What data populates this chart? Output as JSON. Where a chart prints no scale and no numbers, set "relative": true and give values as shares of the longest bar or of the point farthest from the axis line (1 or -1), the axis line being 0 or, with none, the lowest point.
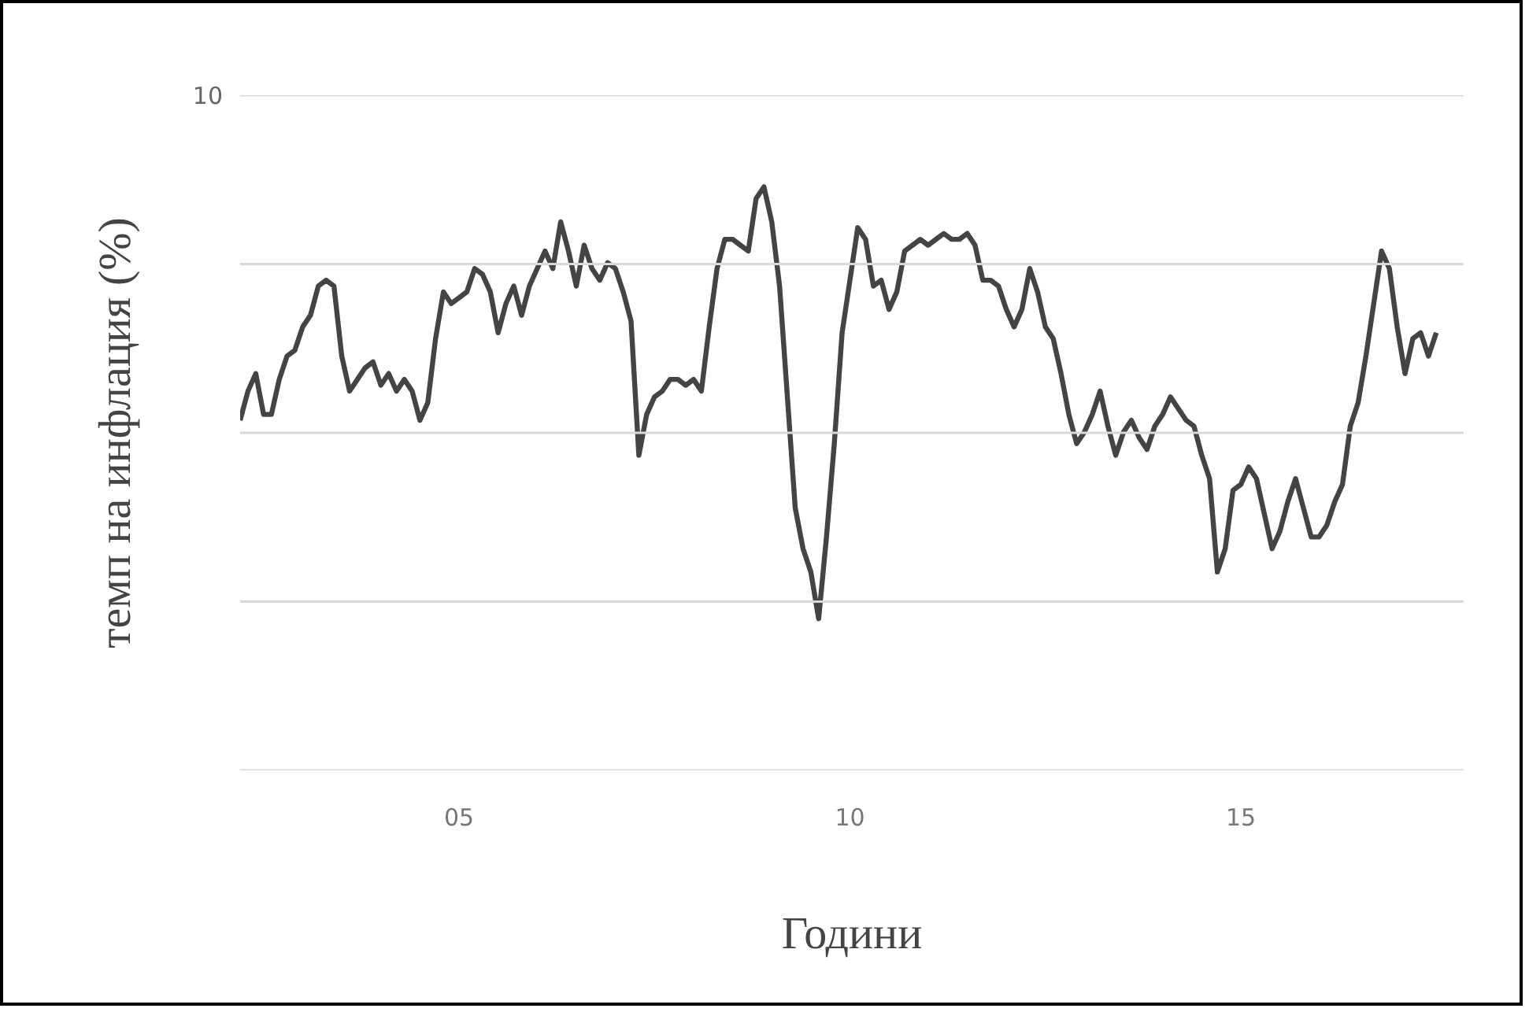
{
  "chart_data": {
    "type": "line",
    "relative": true,
    "xlabel": "Години",
    "ylabel": "темп на инфлация (%)",
    "annotations": [
      "10"
    ],
    "grid": "y",
    "marker": "none",
    "line_style": "solid",
    "xlim": [
      2002.2,
      2017.85
    ],
    "xticks": [
      {
        "value": 2005,
        "label": "05"
      },
      {
        "value": 2010,
        "label": "10"
      },
      {
        "value": 2015,
        "label": "15"
      }
    ],
    "x": [
      2002.2,
      2002.3,
      2002.4,
      2002.5,
      2002.6,
      2002.7,
      2002.8,
      2002.9,
      2003.0,
      2003.1,
      2003.2,
      2003.3,
      2003.4,
      2003.5,
      2003.6,
      2003.7,
      2003.8,
      2003.9,
      2004.0,
      2004.1,
      2004.2,
      2004.3,
      2004.4,
      2004.5,
      2004.6,
      2004.7,
      2004.8,
      2004.9,
      2005.0,
      2005.1,
      2005.2,
      2005.3,
      2005.4,
      2005.5,
      2005.6,
      2005.7,
      2005.8,
      2005.9,
      2006.0,
      2006.1,
      2006.2,
      2006.3,
      2006.4,
      2006.5,
      2006.6,
      2006.7,
      2006.8,
      2006.9,
      2007.0,
      2007.1,
      2007.2,
      2007.3,
      2007.4,
      2007.5,
      2007.6,
      2007.7,
      2007.8,
      2007.9,
      2008.0,
      2008.1,
      2008.2,
      2008.3,
      2008.4,
      2008.5,
      2008.6,
      2008.7,
      2008.8,
      2008.9,
      2009.0,
      2009.1,
      2009.2,
      2009.3,
      2009.4,
      2009.5,
      2009.6,
      2009.7,
      2009.8,
      2009.9,
      2010.0,
      2010.1,
      2010.2,
      2010.3,
      2010.4,
      2010.5,
      2010.6,
      2010.7,
      2010.8,
      2010.9,
      2011.0,
      2011.1,
      2011.2,
      2011.3,
      2011.4,
      2011.5,
      2011.6,
      2011.7,
      2011.8,
      2011.9,
      2012.0,
      2012.1,
      2012.2,
      2012.3,
      2012.4,
      2012.5,
      2012.6,
      2012.7,
      2012.8,
      2012.9,
      2013.0,
      2013.1,
      2013.2,
      2013.3,
      2013.4,
      2013.5,
      2013.6,
      2013.7,
      2013.8,
      2013.9,
      2014.0,
      2014.1,
      2014.2,
      2014.3,
      2014.4,
      2014.5,
      2014.6,
      2014.7,
      2014.8,
      2014.9,
      2015.0,
      2015.1,
      2015.2,
      2015.3,
      2015.4,
      2015.5,
      2015.6,
      2015.7,
      2015.8,
      2015.9,
      2016.0,
      2016.1,
      2016.2,
      2016.3,
      2016.4,
      2016.5,
      2016.6,
      2016.7,
      2016.8,
      2016.9,
      2017.0,
      2017.1,
      2017.2,
      2017.3,
      2017.4,
      2017.5
    ],
    "series": [
      {
        "color": "#444444",
        "values": [
          0.6,
          0.65,
          0.68,
          0.61,
          0.61,
          0.67,
          0.71,
          0.72,
          0.76,
          0.78,
          0.83,
          0.84,
          0.83,
          0.71,
          0.65,
          0.67,
          0.69,
          0.7,
          0.66,
          0.68,
          0.65,
          0.67,
          0.65,
          0.6,
          0.63,
          0.74,
          0.82,
          0.8,
          0.81,
          0.82,
          0.86,
          0.85,
          0.82,
          0.75,
          0.8,
          0.83,
          0.78,
          0.83,
          0.86,
          0.89,
          0.86,
          0.94,
          0.89,
          0.83,
          0.9,
          0.86,
          0.84,
          0.87,
          0.86,
          0.82,
          0.77,
          0.54,
          0.61,
          0.64,
          0.65,
          0.67,
          0.67,
          0.66,
          0.67,
          0.65,
          0.76,
          0.86,
          0.91,
          0.91,
          0.9,
          0.89,
          0.98,
          1.0,
          0.94,
          0.83,
          0.64,
          0.45,
          0.38,
          0.34,
          0.26,
          0.4,
          0.56,
          0.75,
          0.84,
          0.93,
          0.91,
          0.83,
          0.84,
          0.79,
          0.82,
          0.89,
          0.9,
          0.91,
          0.9,
          0.91,
          0.92,
          0.91,
          0.91,
          0.92,
          0.9,
          0.84,
          0.84,
          0.83,
          0.79,
          0.76,
          0.79,
          0.86,
          0.82,
          0.76,
          0.74,
          0.68,
          0.61,
          0.56,
          0.58,
          0.61,
          0.65,
          0.59,
          0.54,
          0.58,
          0.6,
          0.57,
          0.55,
          0.59,
          0.61,
          0.64,
          0.62,
          0.6,
          0.59,
          0.54,
          0.5,
          0.34,
          0.38,
          0.48,
          0.49,
          0.52,
          0.5,
          0.44,
          0.38,
          0.41,
          0.46,
          0.5,
          0.45,
          0.4,
          0.4,
          0.42,
          0.46,
          0.49,
          0.59,
          0.63,
          0.71,
          0.8,
          0.89,
          0.86,
          0.76,
          0.68,
          0.74,
          0.75,
          0.71,
          0.75
        ]
      }
    ]
  }
}
